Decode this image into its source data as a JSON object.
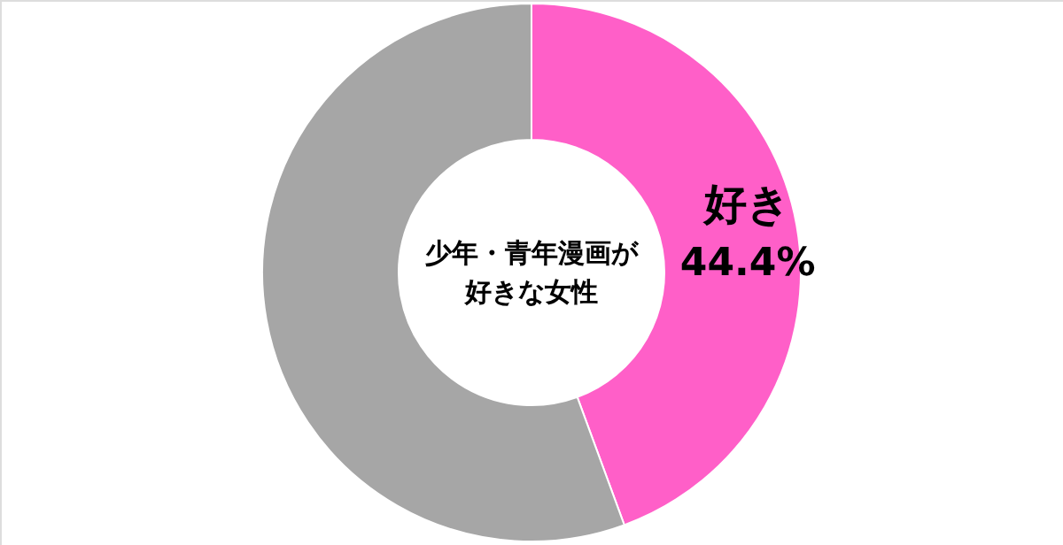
{
  "chart_data": {
    "type": "donut",
    "title": "少年・青年漫画が好きな女性",
    "categories": [
      "好き",
      null
    ],
    "values": [
      44.4,
      55.6
    ],
    "colors": [
      "#ff5fc8",
      "#a6a6a6"
    ],
    "value_labels": [
      "44.4%",
      null
    ]
  }
}
